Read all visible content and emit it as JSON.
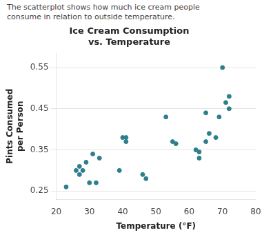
{
  "chart_data": {
    "type": "scatter",
    "title": "Ice Cream Consumption\nvs. Temperature",
    "xlabel": "Temperature (°F)",
    "ylabel": "Pints Consumed\nper Person",
    "annotations": [
      "The scatterplot shows how much ice cream people",
      "consume in relation to outside temperature."
    ],
    "x": [
      23,
      26,
      27,
      27,
      28,
      29,
      30,
      31,
      32,
      33,
      39,
      40,
      41,
      41,
      46,
      47,
      53,
      55,
      56,
      62,
      63,
      63,
      65,
      65,
      66,
      68,
      69,
      70,
      71,
      72,
      72
    ],
    "y": [
      0.26,
      0.3,
      0.29,
      0.31,
      0.3,
      0.32,
      0.27,
      0.34,
      0.27,
      0.33,
      0.3,
      0.38,
      0.38,
      0.37,
      0.29,
      0.28,
      0.43,
      0.37,
      0.365,
      0.35,
      0.33,
      0.345,
      0.44,
      0.37,
      0.39,
      0.38,
      0.43,
      0.55,
      0.465,
      0.45,
      0.48
    ],
    "color": "#2e7f8c",
    "xlim": [
      20,
      80
    ],
    "ylim": [
      0.23,
      0.585
    ],
    "xticks": [
      20,
      30,
      40,
      50,
      60,
      70,
      80
    ],
    "yticks": [
      0.25,
      0.35,
      0.45,
      0.55
    ],
    "grid": "y"
  }
}
